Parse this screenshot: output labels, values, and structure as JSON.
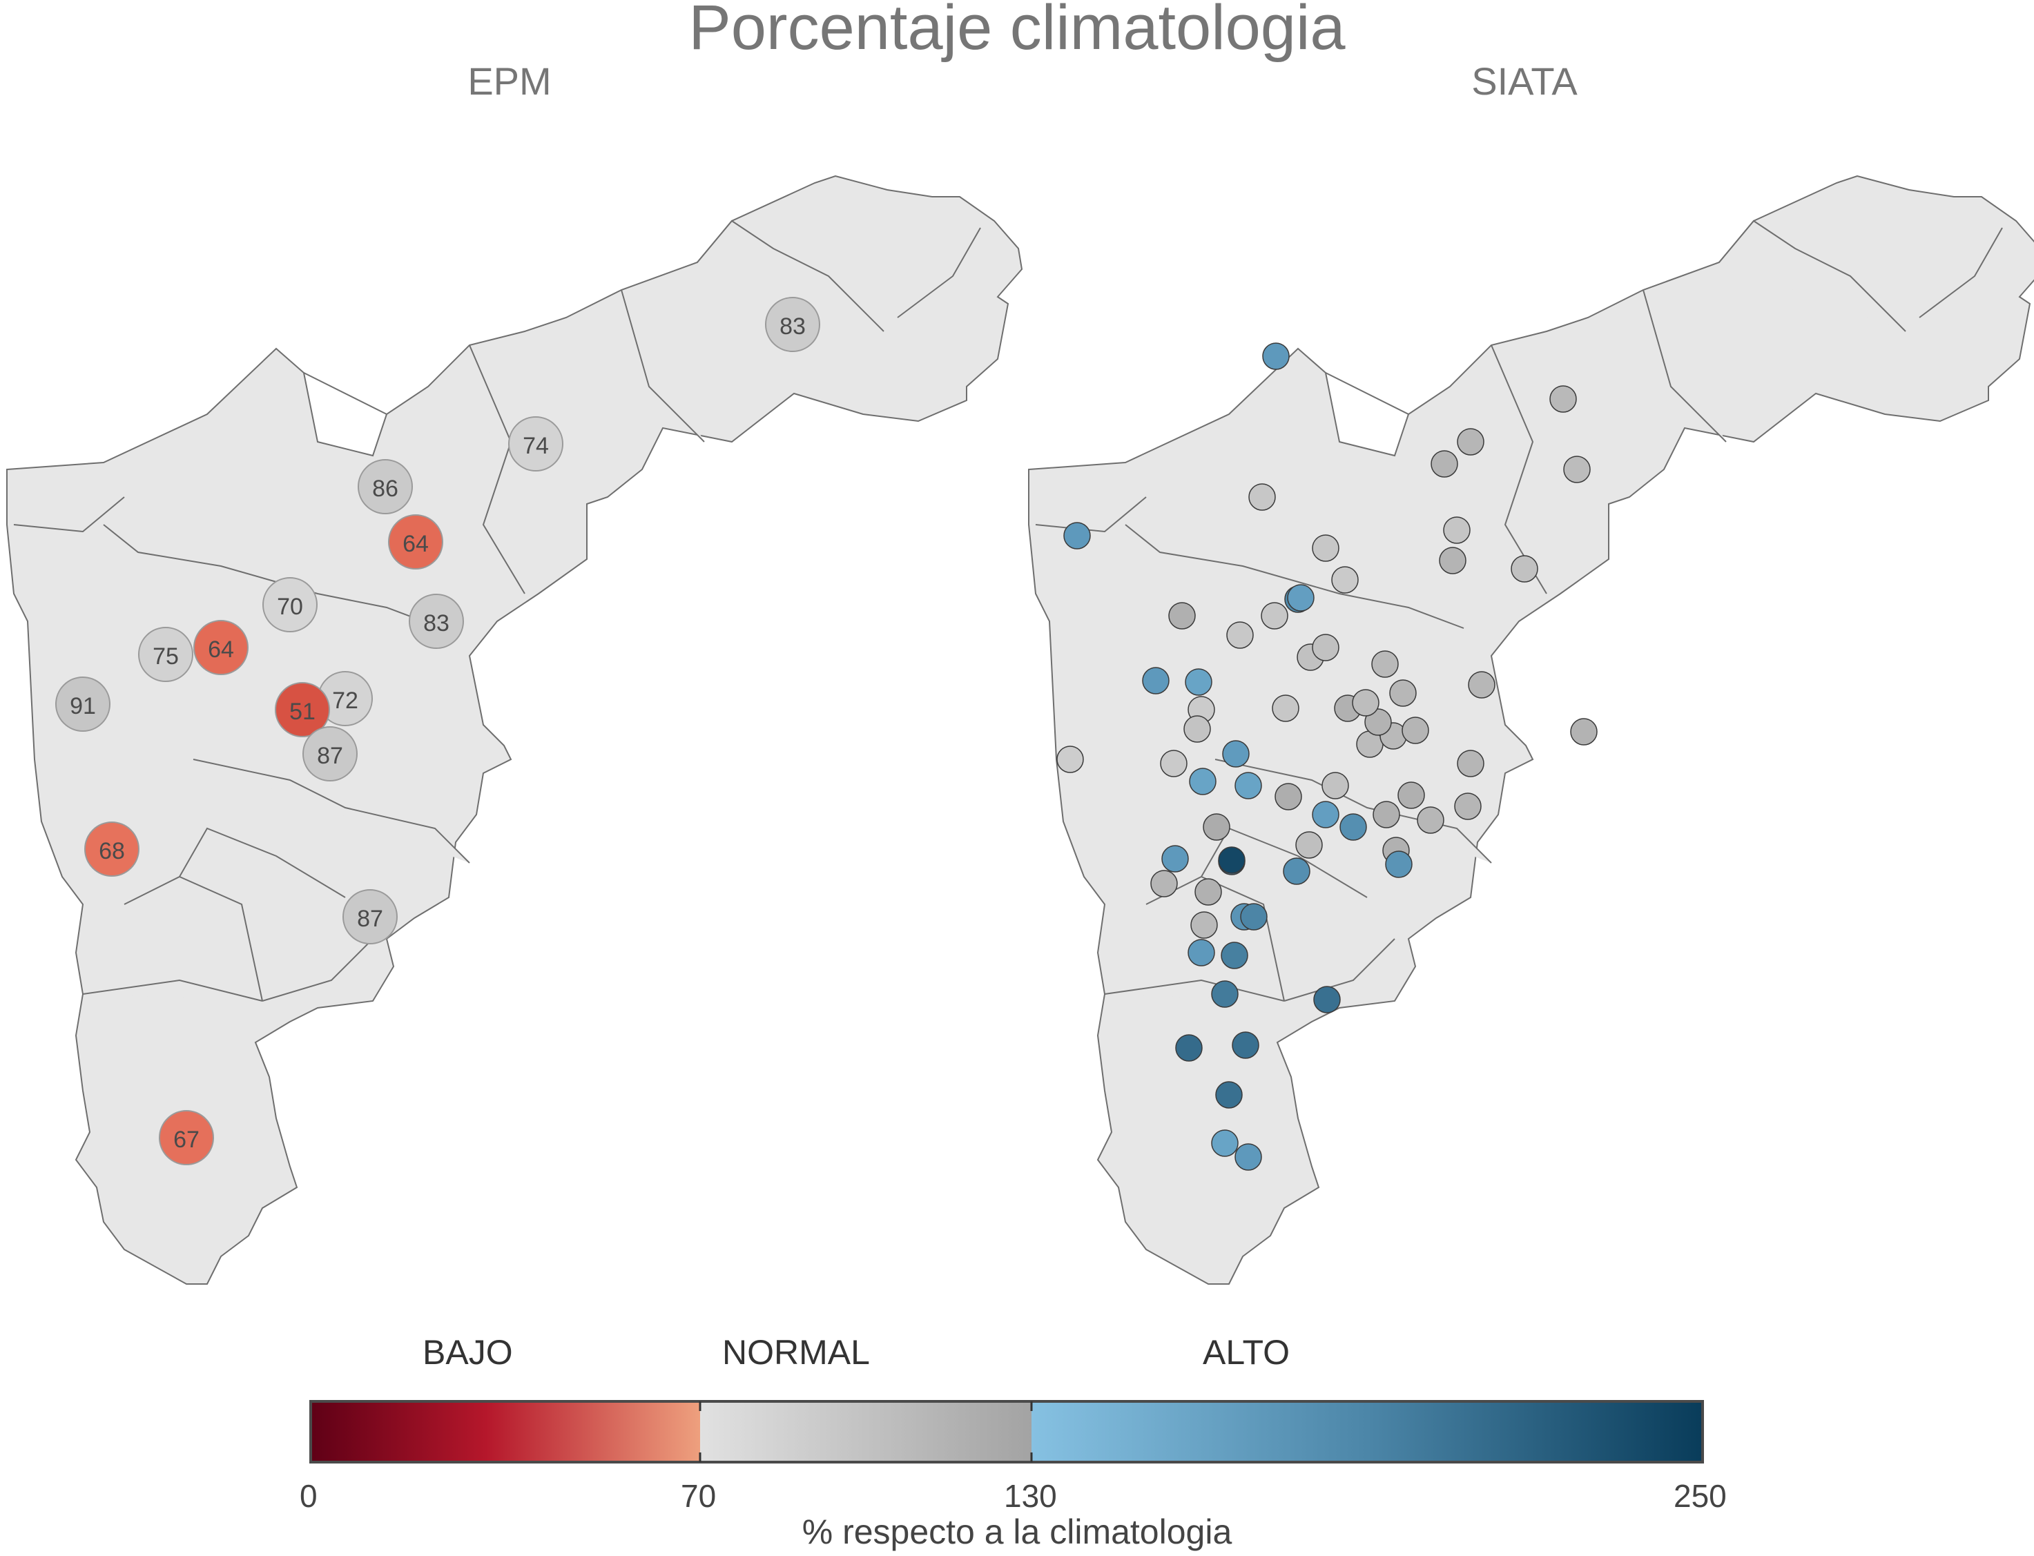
{
  "title": "Porcentaje climatologia",
  "panels": [
    {
      "title": "EPM"
    },
    {
      "title": "SIATA"
    }
  ],
  "colors": {
    "region_fill": "#e7e7e7",
    "region_stroke": "#6e6e6e",
    "bajo": "#e8765f",
    "bajo_dark": "#d2473a",
    "normal_light": "#d6d6d6",
    "normal_dark": "#a8a8a8",
    "alto_light": "#7ab8dc",
    "alto_dark": "#0b3d5a"
  },
  "epm_stations": [
    {
      "label": "83",
      "value": 83
    },
    {
      "label": "74",
      "value": 74
    },
    {
      "label": "86",
      "value": 86
    },
    {
      "label": "64",
      "value": 64
    },
    {
      "label": "70",
      "value": 70
    },
    {
      "label": "83",
      "value": 83
    },
    {
      "label": "75",
      "value": 75
    },
    {
      "label": "64",
      "value": 64
    },
    {
      "label": "91",
      "value": 91
    },
    {
      "label": "72",
      "value": 72
    },
    {
      "label": "51",
      "value": 51
    },
    {
      "label": "87",
      "value": 87
    },
    {
      "label": "68",
      "value": 68
    },
    {
      "label": "87",
      "value": 87
    },
    {
      "label": "67",
      "value": 67
    }
  ],
  "siata_station_values": [
    160,
    112,
    115,
    108,
    90,
    92,
    115,
    90,
    86,
    98,
    104,
    160,
    90,
    175,
    88,
    120,
    97,
    98,
    160,
    150,
    155,
    85,
    118,
    90,
    158,
    95,
    82,
    86,
    104,
    108,
    113,
    116,
    110,
    103,
    150,
    120,
    122,
    96,
    100,
    150,
    108,
    125,
    175,
    160,
    170,
    165,
    118,
    110,
    112,
    165,
    240,
    170,
    155,
    120,
    112,
    110,
    180,
    185,
    190,
    160,
    205,
    200,
    200,
    200,
    150,
    160,
    112,
    118,
    106,
    116
  ],
  "colorbar": {
    "categories": [
      "BAJO",
      "NORMAL",
      "ALTO"
    ],
    "ticks": [
      "0",
      "70",
      "130",
      "250"
    ],
    "label": "% respecto a la climatologia"
  }
}
